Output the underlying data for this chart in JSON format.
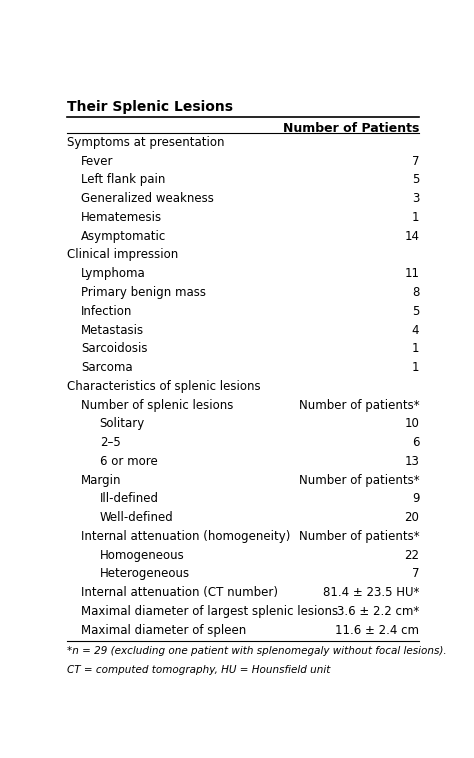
{
  "title": "Their Splenic Lesions",
  "col_header": "Number of Patients",
  "rows": [
    {
      "label": "Symptoms at presentation",
      "value": "",
      "indent": 0,
      "header": true
    },
    {
      "label": "Fever",
      "value": "7",
      "indent": 1,
      "header": false
    },
    {
      "label": "Left flank pain",
      "value": "5",
      "indent": 1,
      "header": false
    },
    {
      "label": "Generalized weakness",
      "value": "3",
      "indent": 1,
      "header": false
    },
    {
      "label": "Hematemesis",
      "value": "1",
      "indent": 1,
      "header": false
    },
    {
      "label": "Asymptomatic",
      "value": "14",
      "indent": 1,
      "header": false
    },
    {
      "label": "Clinical impression",
      "value": "",
      "indent": 0,
      "header": true
    },
    {
      "label": "Lymphoma",
      "value": "11",
      "indent": 1,
      "header": false
    },
    {
      "label": "Primary benign mass",
      "value": "8",
      "indent": 1,
      "header": false
    },
    {
      "label": "Infection",
      "value": "5",
      "indent": 1,
      "header": false
    },
    {
      "label": "Metastasis",
      "value": "4",
      "indent": 1,
      "header": false
    },
    {
      "label": "Sarcoidosis",
      "value": "1",
      "indent": 1,
      "header": false
    },
    {
      "label": "Sarcoma",
      "value": "1",
      "indent": 1,
      "header": false
    },
    {
      "label": "Characteristics of splenic lesions",
      "value": "",
      "indent": 0,
      "header": true
    },
    {
      "label": "Number of splenic lesions",
      "value": "Number of patients*",
      "indent": 1,
      "header": false
    },
    {
      "label": "Solitary",
      "value": "10",
      "indent": 2,
      "header": false
    },
    {
      "label": "2–5",
      "value": "6",
      "indent": 2,
      "header": false
    },
    {
      "label": "6 or more",
      "value": "13",
      "indent": 2,
      "header": false
    },
    {
      "label": "Margin",
      "value": "Number of patients*",
      "indent": 1,
      "header": false
    },
    {
      "label": "Ill-defined",
      "value": "9",
      "indent": 2,
      "header": false
    },
    {
      "label": "Well-defined",
      "value": "20",
      "indent": 2,
      "header": false
    },
    {
      "label": "Internal attenuation (homogeneity)",
      "value": "Number of patients*",
      "indent": 1,
      "header": false
    },
    {
      "label": "Homogeneous",
      "value": "22",
      "indent": 2,
      "header": false
    },
    {
      "label": "Heterogeneous",
      "value": "7",
      "indent": 2,
      "header": false
    },
    {
      "label": "Internal attenuation (CT number)",
      "value": "81.4 ± 23.5 HU*",
      "indent": 1,
      "header": false
    },
    {
      "label": "Maximal diameter of largest splenic lesions",
      "value": "3.6 ± 2.2 cm*",
      "indent": 1,
      "header": false
    },
    {
      "label": "Maximal diameter of spleen",
      "value": "11.6 ± 2.4 cm",
      "indent": 1,
      "header": false
    }
  ],
  "footnote1": "*n = 29 (excluding one patient with splenomegaly without focal lesions).",
  "footnote2": "CT = computed tomography, HU = Hounsfield unit",
  "bg_color": "#ffffff",
  "text_color": "#000000",
  "line_color": "#000000",
  "font_size": 8.5,
  "col_header_fontsize": 9.0,
  "indent_map": {
    "0": 0.0,
    "1": 0.04,
    "2": 0.09
  }
}
